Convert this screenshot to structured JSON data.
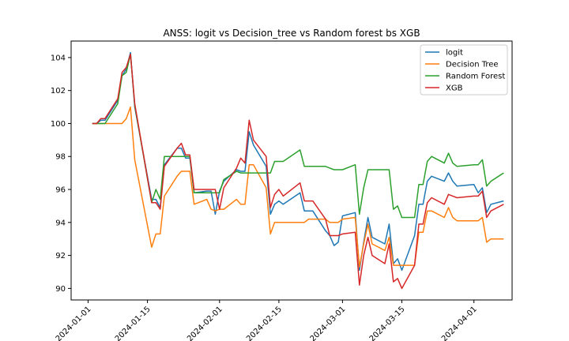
{
  "chart_data": {
    "type": "line",
    "title": "ANSS: logit vs Decision_tree vs Random forest bs XGB",
    "xlabel": "",
    "ylabel": "",
    "xlim": [
      "2023-12-28",
      "2024-04-10"
    ],
    "ylim": [
      89.3,
      105.0
    ],
    "x_ticks": [
      "2024-01-01",
      "2024-01-15",
      "2024-02-01",
      "2024-02-15",
      "2024-03-01",
      "2024-03-15",
      "2024-04-01"
    ],
    "y_ticks": [
      90,
      92,
      94,
      96,
      98,
      100,
      102,
      104
    ],
    "legend": {
      "position": "top-right"
    },
    "x": [
      "2024-01-02",
      "2024-01-03",
      "2024-01-04",
      "2024-01-05",
      "2024-01-08",
      "2024-01-09",
      "2024-01-10",
      "2024-01-11",
      "2024-01-12",
      "2024-01-16",
      "2024-01-17",
      "2024-01-18",
      "2024-01-19",
      "2024-01-22",
      "2024-01-23",
      "2024-01-24",
      "2024-01-25",
      "2024-01-26",
      "2024-01-29",
      "2024-01-30",
      "2024-01-31",
      "2024-02-01",
      "2024-02-02",
      "2024-02-05",
      "2024-02-06",
      "2024-02-07",
      "2024-02-08",
      "2024-02-09",
      "2024-02-12",
      "2024-02-13",
      "2024-02-14",
      "2024-02-15",
      "2024-02-16",
      "2024-02-20",
      "2024-02-21",
      "2024-02-22",
      "2024-02-23",
      "2024-02-26",
      "2024-02-27",
      "2024-02-28",
      "2024-02-29",
      "2024-03-01",
      "2024-03-04",
      "2024-03-05",
      "2024-03-06",
      "2024-03-07",
      "2024-03-08",
      "2024-03-11",
      "2024-03-12",
      "2024-03-13",
      "2024-03-14",
      "2024-03-15",
      "2024-03-18",
      "2024-03-19",
      "2024-03-20",
      "2024-03-21",
      "2024-03-22",
      "2024-03-25",
      "2024-03-26",
      "2024-03-27",
      "2024-03-28",
      "2024-04-01",
      "2024-04-02",
      "2024-04-03",
      "2024-04-04",
      "2024-04-05",
      "2024-04-08"
    ],
    "series": [
      {
        "name": "logit",
        "color": "#1f77b4",
        "values": [
          100.0,
          100.0,
          100.2,
          100.2,
          101.4,
          102.9,
          103.3,
          104.3,
          101.0,
          95.4,
          95.4,
          94.9,
          97.5,
          98.5,
          98.5,
          97.9,
          97.9,
          95.8,
          95.9,
          95.9,
          94.5,
          95.9,
          96.5,
          97.2,
          97.1,
          97.1,
          99.5,
          98.7,
          97.4,
          94.5,
          95.1,
          95.3,
          95.1,
          95.8,
          94.7,
          94.7,
          94.7,
          93.5,
          93.2,
          92.6,
          92.8,
          94.4,
          94.6,
          91.1,
          92.8,
          94.3,
          93.1,
          92.7,
          93.9,
          91.5,
          91.8,
          91.1,
          93.2,
          95.1,
          95.1,
          96.5,
          96.8,
          96.5,
          97.0,
          96.5,
          96.2,
          96.3,
          95.8,
          96.1,
          94.6,
          95.1,
          95.3
        ]
      },
      {
        "name": "Decision Tree",
        "color": "#ff7f0e",
        "values": [
          100.0,
          100.0,
          100.0,
          100.0,
          100.0,
          100.0,
          100.3,
          101.0,
          97.8,
          92.5,
          93.3,
          93.3,
          95.6,
          96.8,
          97.1,
          97.1,
          97.1,
          95.1,
          95.4,
          94.8,
          94.7,
          94.8,
          94.8,
          95.4,
          95.1,
          95.1,
          97.5,
          97.5,
          96.1,
          93.3,
          94.0,
          94.0,
          94.0,
          94.0,
          94.0,
          94.2,
          94.2,
          94.2,
          94.0,
          94.0,
          94.0,
          94.2,
          94.3,
          91.3,
          92.7,
          93.9,
          92.7,
          92.3,
          93.1,
          91.4,
          91.4,
          91.4,
          91.4,
          93.4,
          93.4,
          94.7,
          94.7,
          94.3,
          94.9,
          94.3,
          94.1,
          94.1,
          94.1,
          94.3,
          92.8,
          93.0,
          93.0
        ]
      },
      {
        "name": "Random Forest",
        "color": "#2ca02c",
        "values": [
          100.0,
          100.0,
          100.0,
          100.0,
          101.2,
          102.9,
          103.1,
          104.2,
          101.1,
          95.2,
          96.0,
          95.4,
          98.0,
          98.0,
          98.0,
          98.0,
          98.0,
          95.8,
          95.8,
          95.8,
          95.8,
          95.8,
          96.6,
          97.1,
          97.0,
          97.0,
          97.0,
          97.0,
          97.0,
          97.0,
          97.7,
          97.7,
          97.7,
          98.4,
          97.4,
          97.4,
          97.4,
          97.4,
          97.3,
          97.2,
          97.2,
          97.2,
          97.5,
          94.5,
          96.1,
          97.2,
          97.2,
          97.2,
          97.2,
          94.8,
          95.0,
          94.3,
          94.3,
          96.3,
          96.3,
          97.7,
          98.0,
          97.6,
          98.2,
          97.6,
          97.4,
          97.5,
          97.5,
          97.8,
          96.2,
          96.5,
          97.0
        ]
      },
      {
        "name": "XGB",
        "color": "#d62728",
        "values": [
          100.0,
          100.0,
          100.3,
          100.3,
          101.5,
          103.1,
          103.4,
          104.2,
          101.2,
          95.2,
          95.2,
          94.8,
          97.4,
          98.5,
          98.8,
          98.1,
          98.1,
          96.0,
          96.0,
          96.0,
          96.0,
          94.8,
          96.1,
          97.3,
          97.9,
          97.6,
          100.2,
          99.0,
          98.0,
          94.9,
          95.7,
          96.0,
          95.6,
          96.4,
          95.3,
          95.3,
          95.3,
          94.2,
          93.2,
          93.2,
          93.2,
          93.3,
          93.4,
          90.2,
          92.0,
          93.1,
          92.0,
          91.5,
          92.7,
          90.4,
          90.6,
          90.0,
          91.4,
          93.9,
          93.9,
          95.2,
          95.5,
          95.1,
          95.7,
          95.6,
          95.5,
          95.6,
          95.6,
          95.9,
          94.3,
          94.7,
          95.1
        ]
      }
    ]
  }
}
